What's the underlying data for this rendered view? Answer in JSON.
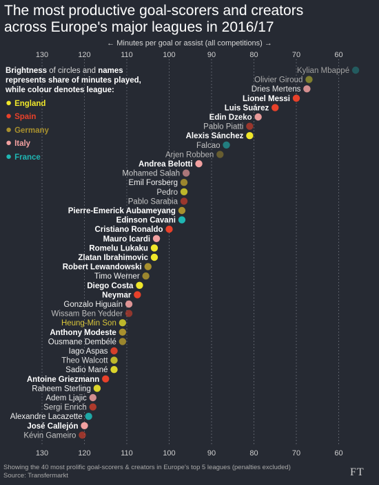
{
  "header": {
    "title_line1": "The most productive goal-scorers and creators",
    "title_line2": "across Europe's major leagues in 2016/17"
  },
  "axis": {
    "caption": "← Minutes per goal or assist (all competitions) →"
  },
  "legend": {
    "word_brightness": "Brightness",
    "text_a": " of circles and ",
    "word_names": "names",
    "text_b": " represents share of minutes played, while colour denotes league:",
    "items": [
      {
        "label": "England",
        "color": "#f0e72a"
      },
      {
        "label": "Spain",
        "color": "#e8412a"
      },
      {
        "label": "Germany",
        "color": "#a8902e"
      },
      {
        "label": "Italy",
        "color": "#f2a0a0"
      },
      {
        "label": "France",
        "color": "#1fb6b3"
      }
    ]
  },
  "footer": {
    "note": "Showing the 40 most prolific goal-scorers & creators in Europe's top 5 leagues (penalties excluded)",
    "source": "Source: Transfermarkt",
    "logo": "FT"
  },
  "chart_data": {
    "type": "scatter",
    "title": "The most productive goal-scorers and creators across Europe's major leagues in 2016/17",
    "xlabel": "Minutes per goal or assist (all competitions)",
    "x_reversed": true,
    "xlim": [
      135,
      55
    ],
    "xticks": [
      130,
      120,
      110,
      100,
      90,
      80,
      70,
      60
    ],
    "grid": "vertical dotted",
    "legend_position": "top-left",
    "series_colors": {
      "England": "#f0e72a",
      "Spain": "#e8412a",
      "Germany": "#a8902e",
      "Italy": "#f2a0a0",
      "France": "#1fb6b3"
    },
    "points": [
      {
        "name": "Kylian Mbappé",
        "x": 56,
        "league": "France",
        "brightness": 0.35
      },
      {
        "name": "Olivier Giroud",
        "x": 67,
        "league": "England",
        "brightness": 0.45
      },
      {
        "name": "Dries Mertens",
        "x": 67.5,
        "league": "Italy",
        "brightness": 0.85
      },
      {
        "name": "Lionel Messi",
        "x": 70,
        "league": "Spain",
        "brightness": 1.0
      },
      {
        "name": "Luis Suárez",
        "x": 75,
        "league": "Spain",
        "brightness": 1.0
      },
      {
        "name": "Edin Dzeko",
        "x": 79,
        "league": "Italy",
        "brightness": 0.95
      },
      {
        "name": "Pablo Piatti",
        "x": 81,
        "league": "Spain",
        "brightness": 0.6
      },
      {
        "name": "Alexis Sánchez",
        "x": 81,
        "league": "England",
        "brightness": 1.0
      },
      {
        "name": "Falcao",
        "x": 86.5,
        "league": "France",
        "brightness": 0.6
      },
      {
        "name": "Arjen Robben",
        "x": 88,
        "league": "Germany",
        "brightness": 0.5
      },
      {
        "name": "Andrea Belotti",
        "x": 93,
        "league": "Italy",
        "brightness": 1.0
      },
      {
        "name": "Mohamed Salah",
        "x": 96,
        "league": "Italy",
        "brightness": 0.65
      },
      {
        "name": "Emil Forsberg",
        "x": 96.5,
        "league": "Germany",
        "brightness": 0.9
      },
      {
        "name": "Pedro",
        "x": 96.5,
        "league": "England",
        "brightness": 0.75
      },
      {
        "name": "Pablo Sarabia",
        "x": 96.5,
        "league": "Spain",
        "brightness": 0.6
      },
      {
        "name": "Pierre-Emerick Aubameyang",
        "x": 97,
        "league": "Germany",
        "brightness": 1.0
      },
      {
        "name": "Edinson Cavani",
        "x": 97,
        "league": "France",
        "brightness": 1.0
      },
      {
        "name": "Cristiano Ronaldo",
        "x": 100,
        "league": "Spain",
        "brightness": 1.0
      },
      {
        "name": "Mauro Icardi",
        "x": 103,
        "league": "Italy",
        "brightness": 1.0
      },
      {
        "name": "Romelu Lukaku",
        "x": 103.5,
        "league": "England",
        "brightness": 1.0
      },
      {
        "name": "Zlatan Ibrahimovic",
        "x": 103.5,
        "league": "England",
        "brightness": 1.0
      },
      {
        "name": "Robert Lewandowski",
        "x": 105,
        "league": "Germany",
        "brightness": 1.0
      },
      {
        "name": "Timo Werner",
        "x": 105.5,
        "league": "Germany",
        "brightness": 0.9
      },
      {
        "name": "Diego Costa",
        "x": 107,
        "league": "England",
        "brightness": 1.0
      },
      {
        "name": "Neymar",
        "x": 107.5,
        "league": "Spain",
        "brightness": 1.0
      },
      {
        "name": "Gonzalo Higuaín",
        "x": 109.5,
        "league": "Italy",
        "brightness": 0.9
      },
      {
        "name": "Wissam Ben Yedder",
        "x": 109.5,
        "league": "Spain",
        "brightness": 0.55
      },
      {
        "name": "Heung-Min Son",
        "x": 111,
        "league": "England",
        "brightness": 0.75
      },
      {
        "name": "Anthony Modeste",
        "x": 111,
        "league": "Germany",
        "brightness": 1.0
      },
      {
        "name": "Ousmane Dembélé",
        "x": 111,
        "league": "Germany",
        "brightness": 0.9
      },
      {
        "name": "Iago Aspas",
        "x": 113,
        "league": "Spain",
        "brightness": 0.9
      },
      {
        "name": "Theo Walcott",
        "x": 113,
        "league": "England",
        "brightness": 0.75
      },
      {
        "name": "Sadio Mané",
        "x": 113,
        "league": "England",
        "brightness": 0.9
      },
      {
        "name": "Antoine Griezmann",
        "x": 115,
        "league": "Spain",
        "brightness": 1.0
      },
      {
        "name": "Raheem Sterling",
        "x": 117,
        "league": "England",
        "brightness": 0.9
      },
      {
        "name": "Adem Ljajic",
        "x": 118,
        "league": "Italy",
        "brightness": 0.85
      },
      {
        "name": "Sergi Enrich",
        "x": 118,
        "league": "Spain",
        "brightness": 0.7
      },
      {
        "name": "Alexandre Lacazette",
        "x": 119,
        "league": "France",
        "brightness": 0.9
      },
      {
        "name": "José Callejón",
        "x": 120,
        "league": "Italy",
        "brightness": 1.0
      },
      {
        "name": "Kévin Gameiro",
        "x": 120.5,
        "league": "Spain",
        "brightness": 0.6
      }
    ]
  }
}
